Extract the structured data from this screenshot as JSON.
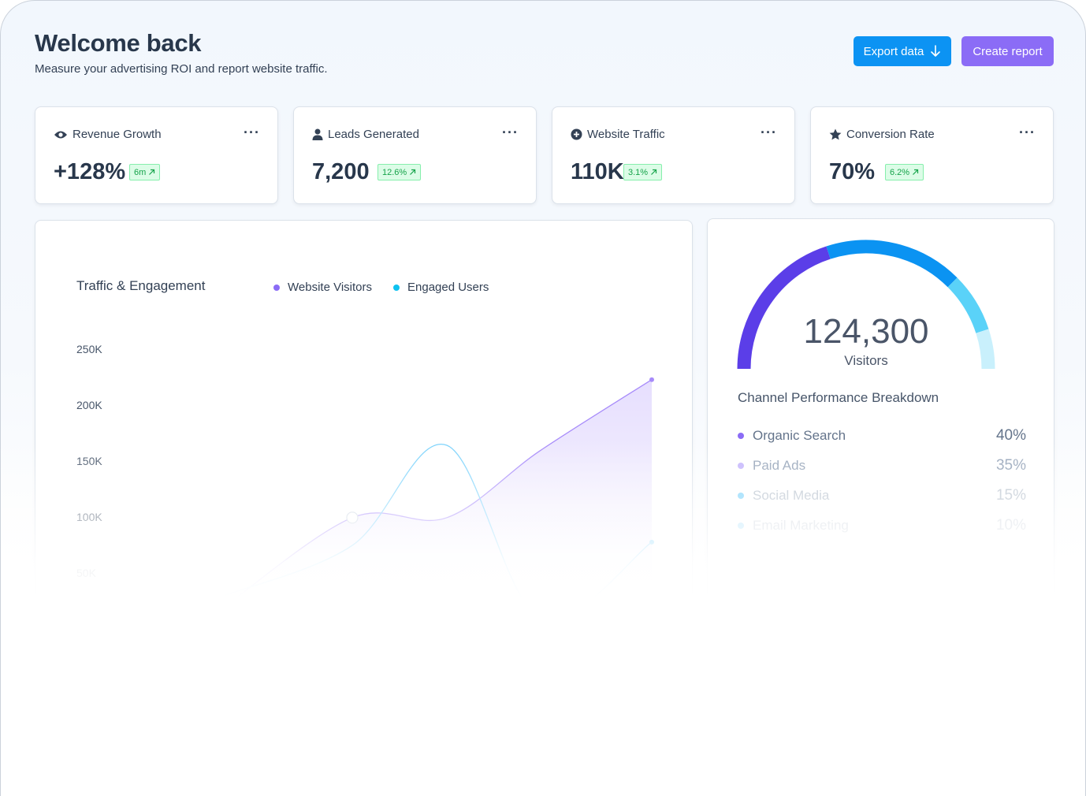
{
  "header": {
    "title": "Welcome back",
    "subtitle": "Measure your advertising ROI and report website traffic.",
    "export_label": "Export data",
    "create_label": "Create report"
  },
  "metrics": [
    {
      "label": "Revenue Growth",
      "icon": "eye-icon",
      "value": "+128%",
      "badge": "6m"
    },
    {
      "label": "Leads Generated",
      "icon": "user-icon",
      "value": "7,200",
      "badge": "12.6%"
    },
    {
      "label": "Website Traffic",
      "icon": "plus-circle-icon",
      "value": "110K",
      "badge": "3.1%"
    },
    {
      "label": "Conversion Rate",
      "icon": "star-icon",
      "value": "70%",
      "badge": "6.2%"
    }
  ],
  "chart_data": {
    "type": "area",
    "title": "Traffic & Engagement",
    "legend": [
      "Website Visitors",
      "Engaged Users"
    ],
    "legend_colors": [
      "#8b6cf6",
      "#0ec2f0"
    ],
    "ytick_labels": [
      "250K",
      "200K",
      "150K",
      "100K",
      "50K"
    ],
    "ylim": [
      0,
      250000
    ],
    "series": [
      {
        "name": "Website Visitors",
        "color": "#a78bfa",
        "values": [
          20000,
          100000,
          100000,
          160000,
          224000
        ]
      },
      {
        "name": "Engaged Users",
        "color": "#7dd3fc",
        "values": [
          30000,
          75000,
          165000,
          10000,
          78000
        ]
      }
    ]
  },
  "gauge": {
    "value": "124,300",
    "label": "Visitors",
    "segments": [
      {
        "name": "Organic Search",
        "fraction": 0.4,
        "color": "#5b3ee8"
      },
      {
        "name": "Paid Ads",
        "fraction": 0.35,
        "color": "#0b93f2"
      },
      {
        "name": "Social Media",
        "fraction": 0.15,
        "color": "#5ad2f8"
      },
      {
        "name": "Email Marketing",
        "fraction": 0.1,
        "color": "#c9f0fc"
      }
    ]
  },
  "breakdown": {
    "title": "Channel Performance Breakdown",
    "channels": [
      {
        "name": "Organic Search",
        "pct": "40%",
        "dot": "#8b6cf6"
      },
      {
        "name": "Paid Ads",
        "pct": "35%",
        "dot": "#c4b5fd"
      },
      {
        "name": "Social Media",
        "pct": "15%",
        "dot": "#7dd3fc"
      },
      {
        "name": "Email Marketing",
        "pct": "10%",
        "dot": "#bae6fd"
      }
    ]
  }
}
